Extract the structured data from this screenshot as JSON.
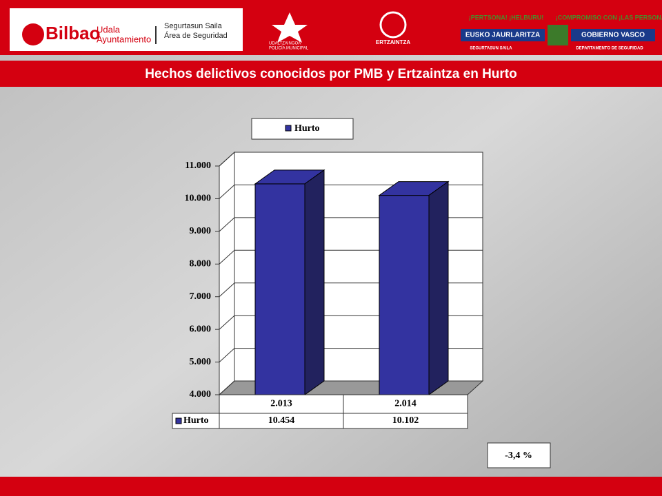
{
  "header": {
    "logo": "Bilbao",
    "logo_sub1": "Udala",
    "logo_sub2": "Ayuntamiento",
    "dept1": "Segurtasun Saila",
    "dept2": "Área de Seguridad",
    "police1": "UDALTZAINGOA",
    "police2": "POLICÍA MUNICIPAL",
    "ertzaintza": "ERTZAINTZA",
    "slogan_eu": "¡PERTSONA! ¡HELBURU!",
    "gov_eu": "EUSKO JAURLARITZA",
    "slogan_es": "¡COMPROMISO CON ¡LAS PERSONAS!",
    "gov_es": "GOBIERNO VASCO",
    "dept_eu": "SEGURTASUN SAILA",
    "dept_es": "DEPARTAMENTO DE SEGURIDAD"
  },
  "chart_data": {
    "type": "bar3d",
    "title": "Hechos delictivos conocidos por PMB y Ertzaintza en Hurto",
    "categories": [
      "2.013",
      "2.014"
    ],
    "series": [
      {
        "name": "Hurto",
        "color": "#3333a0",
        "values": [
          10454,
          10102
        ],
        "value_labels": [
          "10.454",
          "10.102"
        ]
      }
    ],
    "ylim": [
      4000,
      11000
    ],
    "yticks": [
      {
        "value": 4000,
        "label": "4.000"
      },
      {
        "value": 5000,
        "label": "5.000"
      },
      {
        "value": 6000,
        "label": "6.000"
      },
      {
        "value": 7000,
        "label": "7.000"
      },
      {
        "value": 8000,
        "label": "8.000"
      },
      {
        "value": 9000,
        "label": "9.000"
      },
      {
        "value": 10000,
        "label": "10.000"
      },
      {
        "value": 11000,
        "label": "11.000"
      }
    ],
    "grid": true,
    "annotation": "-3,4 %"
  }
}
